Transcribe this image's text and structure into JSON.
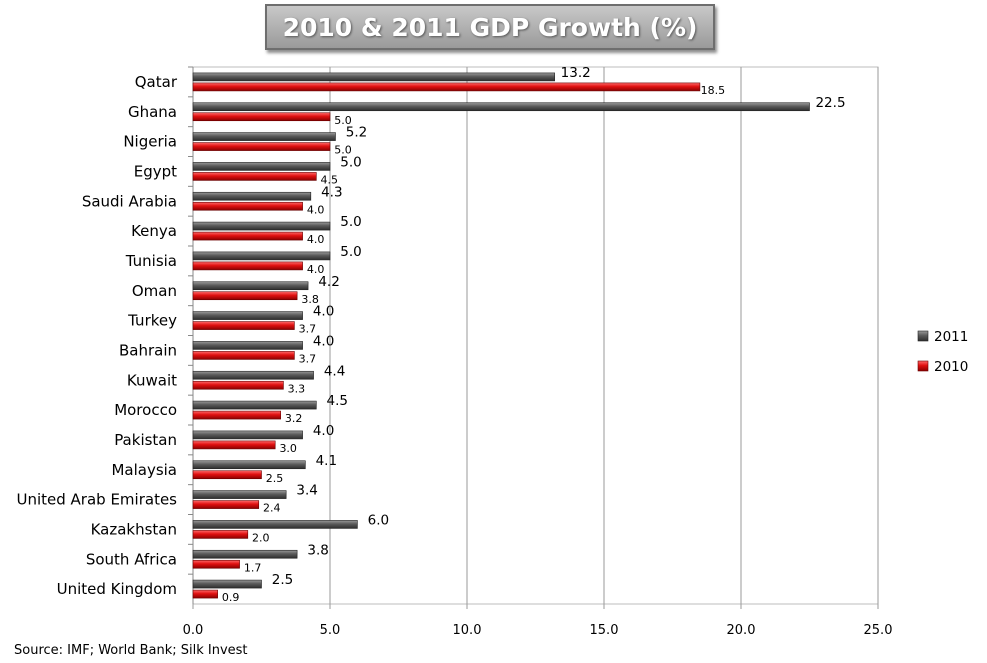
{
  "title": "2010 & 2011 GDP Growth (%)",
  "source": "Source: IMF; World Bank; Silk Invest",
  "colors": {
    "2011": "#555555",
    "2010": "#e01010",
    "grid": "#9a9a9a"
  },
  "chart_data": {
    "type": "bar",
    "orientation": "horizontal",
    "title": "2010 & 2011 GDP Growth (%)",
    "categories": [
      "Qatar",
      "Ghana",
      "Nigeria",
      "Egypt",
      "Saudi Arabia",
      "Kenya",
      "Tunisia",
      "Oman",
      "Turkey",
      "Bahrain",
      "Kuwait",
      "Morocco",
      "Pakistan",
      "Malaysia",
      "United Arab Emirates",
      "Kazakhstan",
      "South Africa",
      "United Kingdom"
    ],
    "series": [
      {
        "name": "2011",
        "values": [
          13.2,
          22.5,
          5.2,
          5.0,
          4.3,
          5.0,
          5.0,
          4.2,
          4.0,
          4.0,
          4.4,
          4.5,
          4.0,
          4.1,
          3.4,
          6.0,
          3.8,
          2.5
        ],
        "labels": [
          "13.2",
          "22.5",
          "5.2",
          "5.0",
          "4.3",
          "5.0",
          "5.0",
          "4.2",
          "4.0",
          "4.0",
          "4.4",
          "4.5",
          "4.0",
          "4.1",
          "3.4",
          "6.0",
          "3.8",
          "2.5"
        ]
      },
      {
        "name": "2010",
        "values": [
          18.5,
          5.0,
          5.0,
          4.5,
          4.0,
          4.0,
          4.0,
          3.8,
          3.7,
          3.7,
          3.3,
          3.2,
          3.0,
          2.5,
          2.4,
          2.0,
          1.7,
          0.9
        ],
        "labels": [
          "18.5",
          "5.0",
          "5.0",
          "4.5",
          "4.0",
          "4.0",
          "4.0",
          "3.8",
          "3.7",
          "3.7",
          "3.3",
          "3.2",
          "3.0",
          "2.5",
          "2.4",
          "2.0",
          "1.7",
          "0.9"
        ]
      }
    ],
    "xlim": [
      0,
      25
    ],
    "xticks": [
      "0.0",
      "5.0",
      "10.0",
      "15.0",
      "20.0",
      "25.0"
    ],
    "tick_values": [
      0,
      5,
      10,
      15,
      20,
      25
    ],
    "grid": true,
    "legend": "right"
  }
}
